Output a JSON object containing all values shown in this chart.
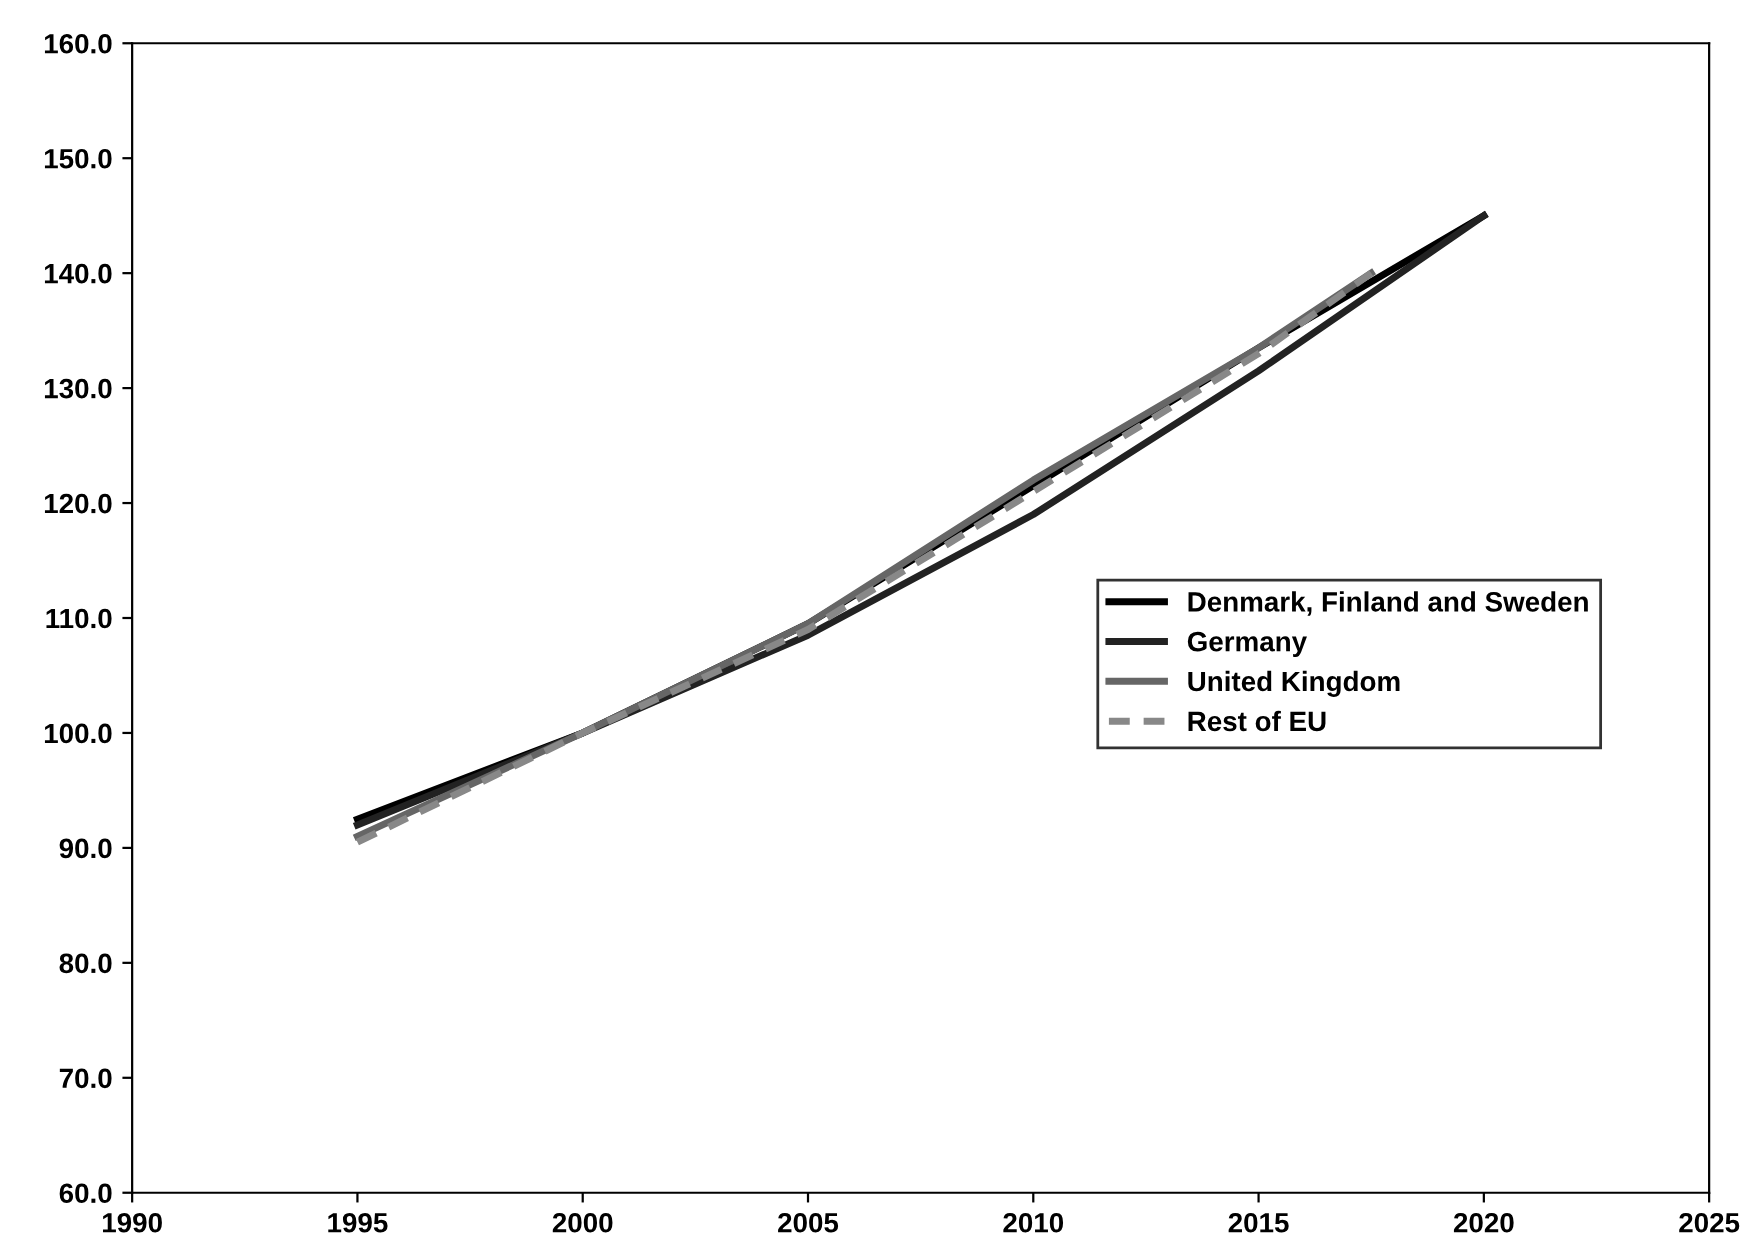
{
  "chart_data": {
    "type": "line",
    "xlim": [
      1990,
      2025
    ],
    "xticks": [
      1990,
      1995,
      2000,
      2005,
      2010,
      2015,
      2020,
      2025
    ],
    "ylim": [
      60,
      160
    ],
    "yticks": [
      {
        "value": 60,
        "label": "60.0"
      },
      {
        "value": 70,
        "label": "70.0"
      },
      {
        "value": 80,
        "label": "80.0"
      },
      {
        "value": 90,
        "label": "90.0"
      },
      {
        "value": 100,
        "label": "100.0"
      },
      {
        "value": 110,
        "label": "110.0"
      },
      {
        "value": 120,
        "label": "120.0"
      },
      {
        "value": 130,
        "label": "130.0"
      },
      {
        "value": 140,
        "label": "140.0"
      },
      {
        "value": 150,
        "label": "150.0"
      },
      {
        "value": 160,
        "label": "160.0"
      }
    ],
    "grid": false,
    "legend": "right",
    "marker": "none",
    "series": [
      {
        "name": "Denmark, Finland and Sweden",
        "color": "#000000",
        "line_style": "solid",
        "x": [
          1995,
          2000,
          2005,
          2010,
          2015,
          2020
        ],
        "values": [
          92.5,
          100,
          109.5,
          121.5,
          133.5,
          145
        ]
      },
      {
        "name": "Germany",
        "color": "#222222",
        "line_style": "solid",
        "x": [
          1995,
          2000,
          2005,
          2010,
          2015,
          2020
        ],
        "values": [
          92,
          100,
          108.5,
          119,
          131.5,
          145
        ]
      },
      {
        "name": "United Kingdom",
        "color": "#666666",
        "line_style": "solid",
        "x": [
          1995,
          2000,
          2005,
          2010,
          2015,
          2017.5
        ],
        "values": [
          91,
          100,
          109.5,
          122,
          133.5,
          140
        ]
      },
      {
        "name": "Rest of EU",
        "color": "#888888",
        "line_style": "dashed",
        "x": [
          1995,
          2000,
          2005,
          2010,
          2015,
          2017.5
        ],
        "values": [
          90.5,
          100,
          109,
          121,
          133,
          140
        ]
      }
    ]
  }
}
